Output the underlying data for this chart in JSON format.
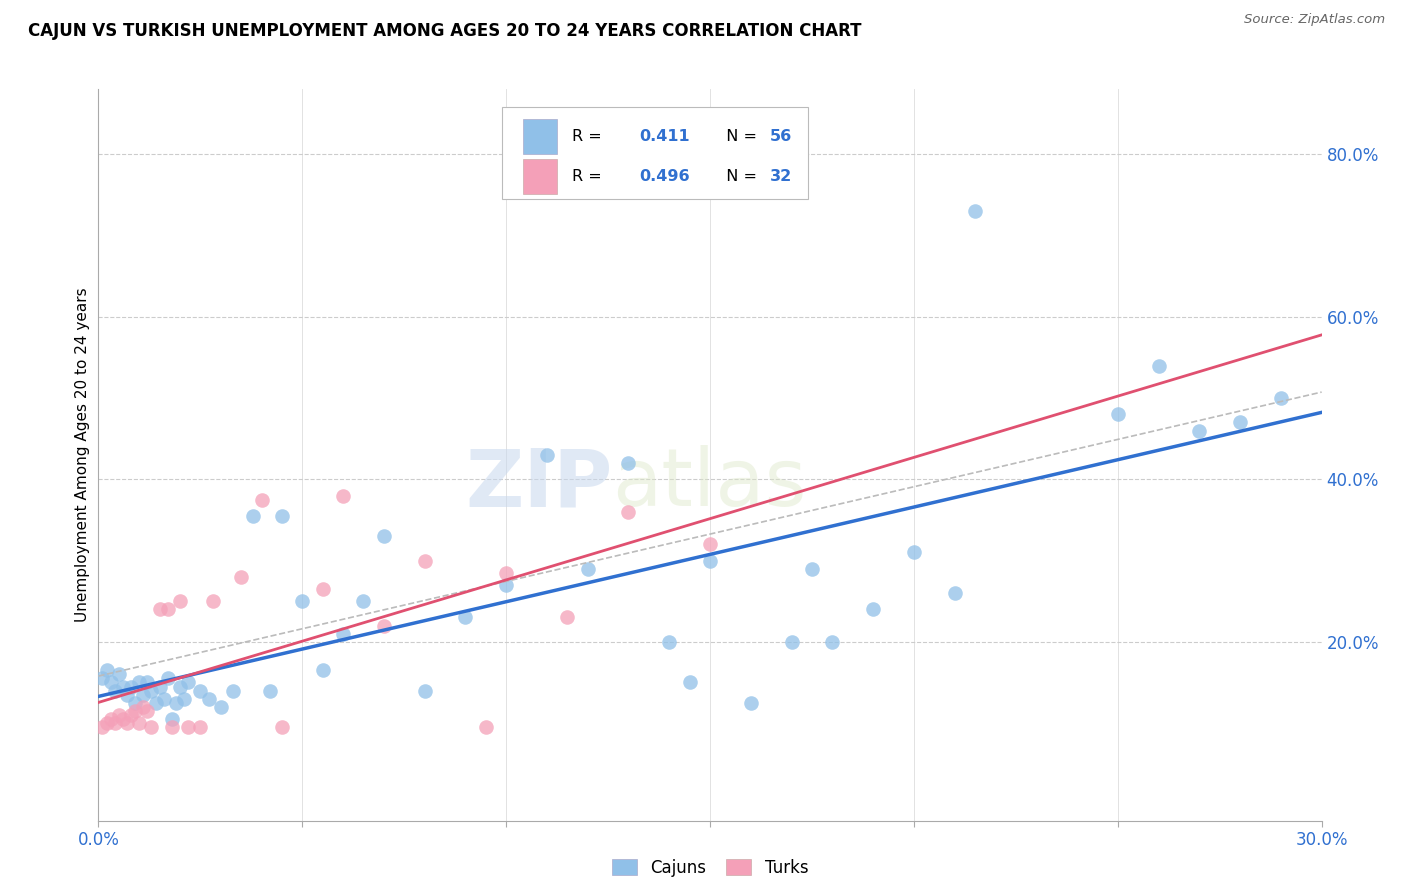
{
  "title": "CAJUN VS TURKISH UNEMPLOYMENT AMONG AGES 20 TO 24 YEARS CORRELATION CHART",
  "source": "Source: ZipAtlas.com",
  "ylabel": "Unemployment Among Ages 20 to 24 years",
  "xlim": [
    0.0,
    0.3
  ],
  "ylim": [
    -0.02,
    0.88
  ],
  "xtick_positions": [
    0.0,
    0.05,
    0.1,
    0.15,
    0.2,
    0.25,
    0.3
  ],
  "yticks_right": [
    0.2,
    0.4,
    0.6,
    0.8
  ],
  "ytick_right_labels": [
    "20.0%",
    "40.0%",
    "60.0%",
    "80.0%"
  ],
  "cajun_color": "#90c0e8",
  "turk_color": "#f4a0b8",
  "cajun_line_color": "#3070d0",
  "turk_line_color": "#e05070",
  "R_cajun": "0.411",
  "N_cajun": "56",
  "R_turk": "0.496",
  "N_turk": "32",
  "legend_label_cajun": "Cajuns",
  "legend_label_turk": "Turks",
  "watermark_zip": "ZIP",
  "watermark_atlas": "atlas",
  "grid_color": "#cccccc",
  "cajun_x": [
    0.001,
    0.002,
    0.003,
    0.004,
    0.005,
    0.006,
    0.007,
    0.008,
    0.009,
    0.01,
    0.011,
    0.012,
    0.013,
    0.014,
    0.015,
    0.016,
    0.017,
    0.018,
    0.019,
    0.02,
    0.021,
    0.022,
    0.025,
    0.027,
    0.03,
    0.033,
    0.038,
    0.042,
    0.045,
    0.05,
    0.055,
    0.06,
    0.065,
    0.07,
    0.08,
    0.09,
    0.1,
    0.11,
    0.12,
    0.13,
    0.14,
    0.145,
    0.15,
    0.16,
    0.17,
    0.175,
    0.18,
    0.19,
    0.2,
    0.21,
    0.25,
    0.26,
    0.27,
    0.28,
    0.29,
    0.215
  ],
  "cajun_y": [
    0.155,
    0.165,
    0.15,
    0.14,
    0.16,
    0.145,
    0.135,
    0.145,
    0.125,
    0.15,
    0.135,
    0.15,
    0.14,
    0.125,
    0.145,
    0.13,
    0.155,
    0.105,
    0.125,
    0.145,
    0.13,
    0.15,
    0.14,
    0.13,
    0.12,
    0.14,
    0.355,
    0.14,
    0.355,
    0.25,
    0.165,
    0.21,
    0.25,
    0.33,
    0.14,
    0.23,
    0.27,
    0.43,
    0.29,
    0.42,
    0.2,
    0.15,
    0.3,
    0.125,
    0.2,
    0.29,
    0.2,
    0.24,
    0.31,
    0.26,
    0.48,
    0.54,
    0.46,
    0.47,
    0.5,
    0.73
  ],
  "turk_x": [
    0.001,
    0.002,
    0.003,
    0.004,
    0.005,
    0.006,
    0.007,
    0.008,
    0.009,
    0.01,
    0.011,
    0.012,
    0.013,
    0.015,
    0.017,
    0.018,
    0.02,
    0.022,
    0.025,
    0.028,
    0.035,
    0.04,
    0.045,
    0.055,
    0.07,
    0.08,
    0.1,
    0.115,
    0.13,
    0.15,
    0.06,
    0.095
  ],
  "turk_y": [
    0.095,
    0.1,
    0.105,
    0.1,
    0.11,
    0.105,
    0.1,
    0.11,
    0.115,
    0.1,
    0.12,
    0.115,
    0.095,
    0.24,
    0.24,
    0.095,
    0.25,
    0.095,
    0.095,
    0.25,
    0.28,
    0.375,
    0.095,
    0.265,
    0.22,
    0.3,
    0.285,
    0.23,
    0.36,
    0.32,
    0.38,
    0.095
  ]
}
